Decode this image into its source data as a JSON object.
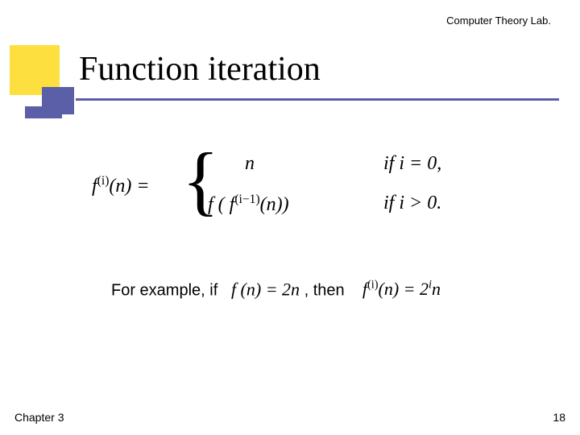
{
  "header": {
    "lab_label": "Computer Theory Lab."
  },
  "title": "Function iteration",
  "math": {
    "lhs": "f",
    "lhs_sup": "(i)",
    "lhs_arg": "(n) =",
    "case1": "n",
    "case2_pre": "f ( f",
    "case2_sup": "(i−1)",
    "case2_post": "(n))",
    "cond1_if": "if",
    "cond1_body": "i = 0,",
    "cond2_if": "if",
    "cond2_body": "i > 0."
  },
  "example": {
    "pre": "For example, if",
    "f1": "f (n) = 2n",
    "comma_then": ", then",
    "f2_pre": "f",
    "f2_sup": "(i)",
    "f2_mid": "(n) = 2",
    "f2_exp": "i",
    "f2_post": "n"
  },
  "footer": {
    "chapter": "Chapter 3",
    "page": "18"
  },
  "style": {
    "yellow": "#fde040",
    "purple": "#5a5fa8",
    "title_fontsize": 42,
    "body_fontsize": 20,
    "math_fontsize": 24,
    "header_fontsize": 13,
    "footer_fontsize": 14
  }
}
